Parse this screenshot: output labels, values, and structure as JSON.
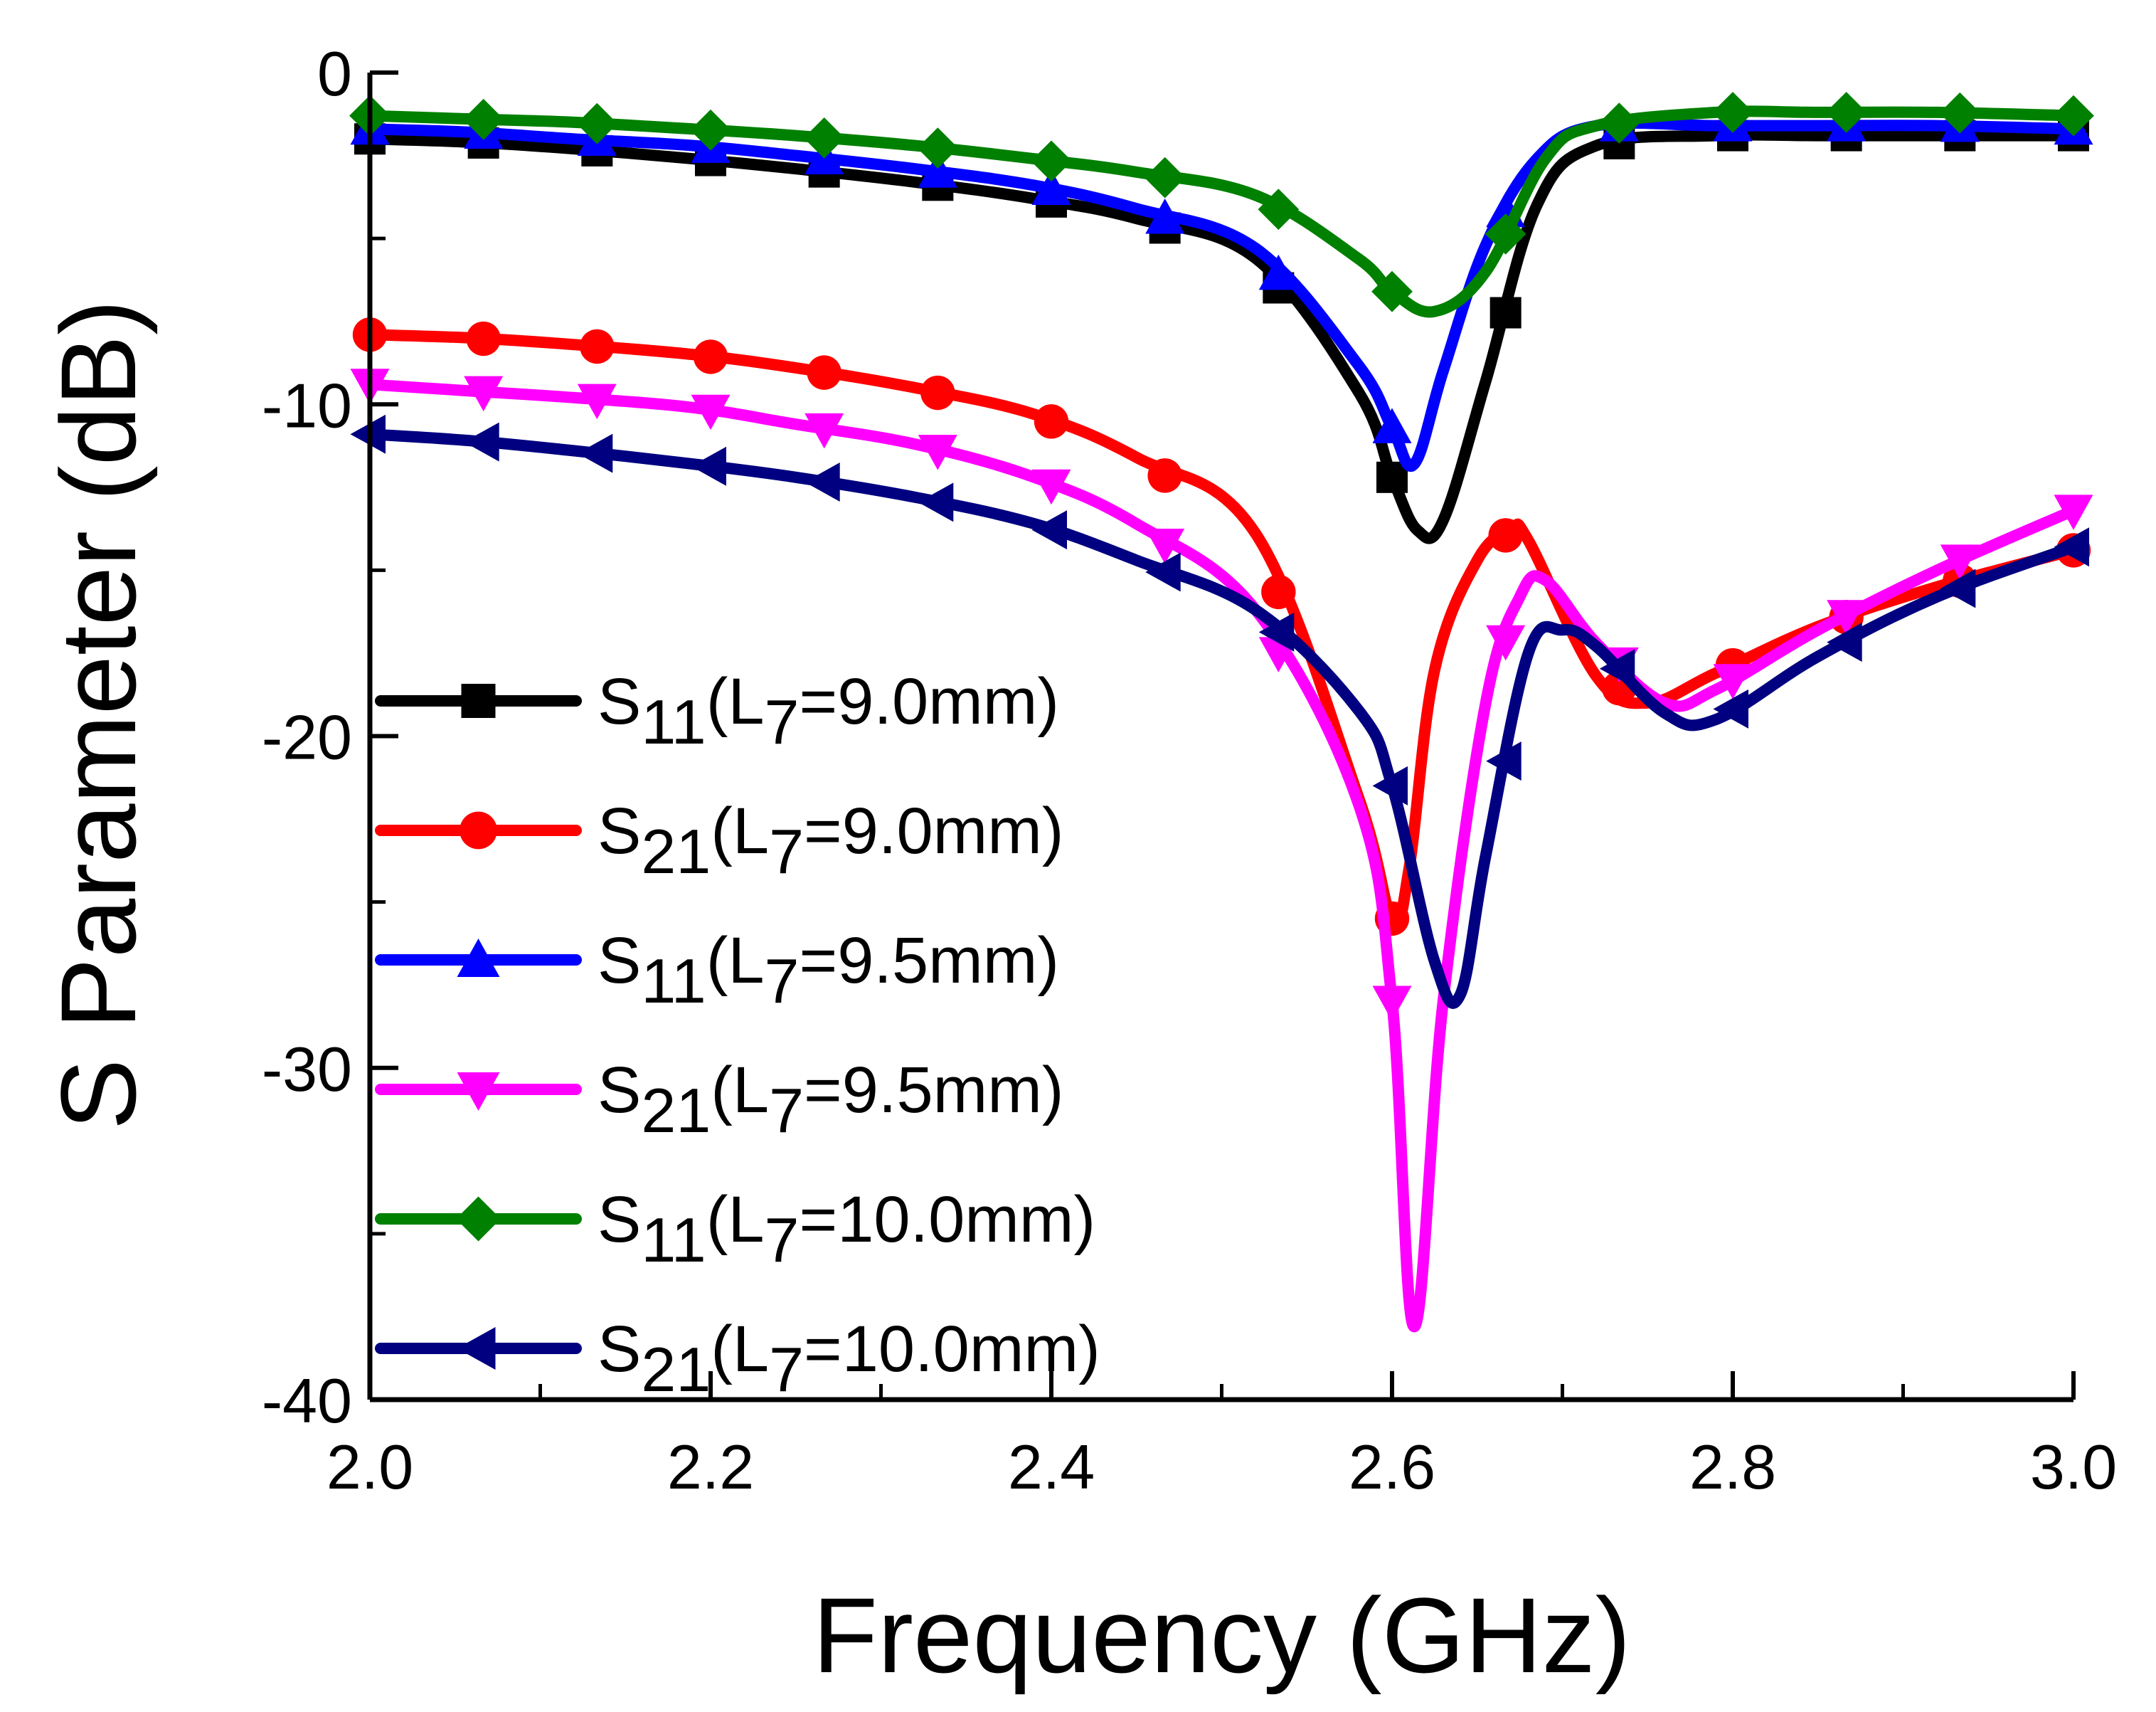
{
  "chart_data": {
    "type": "line",
    "xlabel": "Frequency (GHz)",
    "ylabel": "S Parameter (dB)",
    "xlim": [
      2.0,
      3.0
    ],
    "ylim": [
      -40,
      0
    ],
    "x_ticks": [
      2.0,
      2.2,
      2.4,
      2.6,
      2.8,
      3.0
    ],
    "x_tick_labels": [
      "2.0",
      "2.2",
      "2.4",
      "2.6",
      "2.8",
      "3.0"
    ],
    "y_ticks": [
      0,
      -10,
      -20,
      -30,
      -40
    ],
    "y_tick_labels": [
      "0",
      "-10",
      "-20",
      "-30",
      "-40"
    ],
    "grid": false,
    "legend_position": "lower-left",
    "series": [
      {
        "name": "S11(L7=9.0mm)",
        "param": "S",
        "sub": "11",
        "cond_prefix": "(L",
        "cond_sub": "7",
        "cond_suffix": "=9.0mm)",
        "color": "#000000",
        "marker": "square",
        "x": [
          2.0,
          2.06,
          2.12,
          2.19,
          2.25,
          2.32,
          2.39,
          2.45,
          2.52,
          2.58,
          2.6,
          2.615,
          2.63,
          2.655,
          2.685,
          2.72,
          2.79,
          2.85,
          2.92,
          2.99,
          3.0
        ],
        "y": [
          -2.0,
          -2.1,
          -2.3,
          -2.6,
          -2.9,
          -3.3,
          -3.8,
          -4.4,
          -5.6,
          -9.6,
          -12.2,
          -13.8,
          -13.5,
          -9.3,
          -4.0,
          -2.2,
          -1.9,
          -1.9,
          -1.9,
          -1.9,
          -1.9
        ]
      },
      {
        "name": "S21(L7=9.0mm)",
        "param": "S",
        "sub": "21",
        "cond_prefix": "(L",
        "cond_sub": "7",
        "cond_suffix": "=9.0mm)",
        "color": "#ff0000",
        "marker": "circle",
        "x": [
          2.0,
          2.06,
          2.12,
          2.19,
          2.25,
          2.32,
          2.39,
          2.45,
          2.52,
          2.58,
          2.6,
          2.61,
          2.625,
          2.65,
          2.67,
          2.68,
          2.72,
          2.75,
          2.79,
          2.85,
          2.92,
          3.0
        ],
        "y": [
          -7.9,
          -8.0,
          -8.2,
          -8.5,
          -8.9,
          -9.5,
          -10.3,
          -11.6,
          -13.9,
          -21.8,
          -25.5,
          -24.0,
          -18.0,
          -14.7,
          -13.8,
          -14.1,
          -18.2,
          -19.0,
          -18.1,
          -16.7,
          -15.5,
          -14.4
        ]
      },
      {
        "name": "S11(L7=9.5mm)",
        "param": "S",
        "sub": "11",
        "cond_prefix": "(L",
        "cond_sub": "7",
        "cond_suffix": "=9.5mm)",
        "color": "#0000ff",
        "marker": "triangle-up",
        "x": [
          2.0,
          2.06,
          2.12,
          2.19,
          2.25,
          2.32,
          2.39,
          2.45,
          2.52,
          2.58,
          2.6,
          2.613,
          2.63,
          2.655,
          2.685,
          2.72,
          2.79,
          2.85,
          2.92,
          3.0
        ],
        "y": [
          -1.7,
          -1.8,
          -2.0,
          -2.2,
          -2.5,
          -2.9,
          -3.4,
          -4.1,
          -5.3,
          -8.8,
          -10.7,
          -11.8,
          -9.0,
          -5.2,
          -2.6,
          -1.6,
          -1.6,
          -1.6,
          -1.6,
          -1.7
        ]
      },
      {
        "name": "S21(L7=9.5mm)",
        "param": "S",
        "sub": "21",
        "cond_prefix": "(L",
        "cond_sub": "7",
        "cond_suffix": "=9.5mm)",
        "color": "#ff00ff",
        "marker": "triangle-down",
        "x": [
          2.0,
          2.06,
          2.12,
          2.19,
          2.25,
          2.32,
          2.39,
          2.45,
          2.52,
          2.58,
          2.6,
          2.613,
          2.63,
          2.655,
          2.675,
          2.69,
          2.72,
          2.76,
          2.79,
          2.85,
          2.92,
          3.0
        ],
        "y": [
          -9.4,
          -9.6,
          -9.8,
          -10.1,
          -10.6,
          -11.2,
          -12.2,
          -13.6,
          -16.2,
          -22.0,
          -28.0,
          -37.8,
          -28.0,
          -19.0,
          -15.8,
          -15.3,
          -17.2,
          -19.0,
          -18.6,
          -16.8,
          -15.0,
          -13.2
        ]
      },
      {
        "name": "S11(L7=10.0mm)",
        "param": "S",
        "sub": "11",
        "cond_prefix": "(L",
        "cond_sub": "7",
        "cond_suffix": "=10.0mm)",
        "color": "#008000",
        "marker": "diamond",
        "x": [
          2.0,
          2.06,
          2.12,
          2.19,
          2.25,
          2.32,
          2.39,
          2.45,
          2.52,
          2.58,
          2.6,
          2.625,
          2.655,
          2.69,
          2.72,
          2.79,
          2.85,
          2.92,
          3.0
        ],
        "y": [
          -1.3,
          -1.4,
          -1.5,
          -1.7,
          -1.9,
          -2.2,
          -2.6,
          -3.0,
          -3.7,
          -5.6,
          -6.6,
          -7.2,
          -6.0,
          -2.6,
          -1.6,
          -1.2,
          -1.2,
          -1.2,
          -1.3
        ]
      },
      {
        "name": "S21(L7=10.0mm)",
        "param": "S",
        "sub": "21",
        "cond_prefix": "(L",
        "cond_sub": "7",
        "cond_suffix": "=10.0mm)",
        "color": "#000080",
        "marker": "triangle-left",
        "x": [
          2.0,
          2.06,
          2.12,
          2.19,
          2.25,
          2.32,
          2.39,
          2.45,
          2.52,
          2.58,
          2.6,
          2.625,
          2.64,
          2.655,
          2.68,
          2.7,
          2.72,
          2.76,
          2.79,
          2.85,
          2.92,
          3.0
        ],
        "y": [
          -10.9,
          -11.1,
          -11.4,
          -11.8,
          -12.2,
          -12.8,
          -13.6,
          -14.7,
          -16.2,
          -19.2,
          -21.5,
          -26.8,
          -27.8,
          -23.6,
          -17.5,
          -16.8,
          -17.3,
          -19.3,
          -19.5,
          -17.6,
          -15.8,
          -14.3
        ]
      }
    ]
  }
}
